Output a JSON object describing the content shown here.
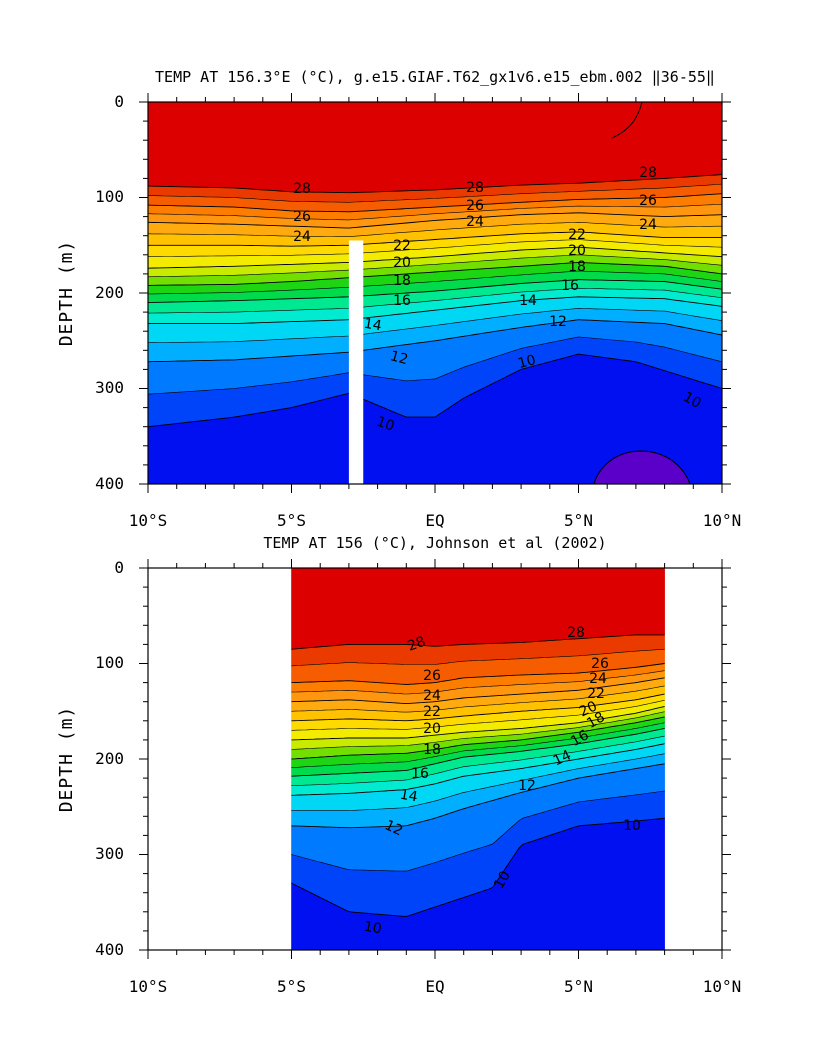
{
  "chart_data": [
    {
      "type": "heatmap",
      "title": "TEMP AT 156.3°E (°C), g.e15.GIAF.T62_gx1v6.e15_ebm.002 ‖36-55‖",
      "xlabel": "",
      "ylabel": "DEPTH (m)",
      "x_ticks": [
        "10°S",
        "5°S",
        "EQ",
        "5°N",
        "10°N"
      ],
      "y_ticks": [
        "0",
        "100",
        "200",
        "300",
        "400"
      ],
      "xlim": [
        -10,
        10
      ],
      "ylim": [
        400,
        0
      ],
      "y_reversed": true,
      "colorscale": "rainbow, blue (cold) to red (warm)",
      "contour_interval": 1,
      "data_coverage": {
        "lat_start": -10,
        "lat_end": 10
      },
      "missing_data_band": {
        "lat_start": -3.0,
        "lat_end": -2.5,
        "depth_top": 145
      },
      "isotherms": [
        {
          "temp": 28,
          "lat": [
            -10,
            -7,
            -5,
            -3,
            0,
            3,
            5,
            8,
            10
          ],
          "depth": [
            88,
            90,
            94,
            95,
            92,
            87,
            85,
            80,
            76
          ]
        },
        {
          "temp": 26,
          "lat": [
            -10,
            -7,
            -5,
            -3,
            0,
            3,
            5,
            8,
            10
          ],
          "depth": [
            108,
            110,
            114,
            115,
            110,
            105,
            102,
            100,
            96
          ]
        },
        {
          "temp": 24,
          "lat": [
            -10,
            -7,
            -5,
            -3,
            0,
            3,
            5,
            8,
            10
          ],
          "depth": [
            126,
            128,
            130,
            132,
            124,
            118,
            116,
            120,
            118
          ]
        },
        {
          "temp": 22,
          "lat": [
            -10,
            -7,
            -5,
            -3,
            0,
            3,
            5,
            8,
            10
          ],
          "depth": [
            150,
            150,
            151,
            150,
            144,
            138,
            136,
            142,
            142
          ]
        },
        {
          "temp": 20,
          "lat": [
            -10,
            -7,
            -5,
            -3,
            0,
            3,
            5,
            8,
            10
          ],
          "depth": [
            174,
            172,
            170,
            168,
            162,
            155,
            152,
            158,
            162
          ]
        },
        {
          "temp": 18,
          "lat": [
            -10,
            -7,
            -5,
            -3,
            0,
            3,
            5,
            8,
            10
          ],
          "depth": [
            192,
            191,
            188,
            184,
            178,
            172,
            168,
            172,
            180
          ]
        },
        {
          "temp": 16,
          "lat": [
            -10,
            -7,
            -5,
            -3,
            0,
            3,
            5,
            8,
            10
          ],
          "depth": [
            210,
            208,
            206,
            204,
            198,
            190,
            186,
            188,
            196
          ]
        },
        {
          "temp": 14,
          "lat": [
            -10,
            -7,
            -5,
            -3,
            0,
            3,
            5,
            8,
            10
          ],
          "depth": [
            232,
            232,
            230,
            228,
            218,
            208,
            204,
            206,
            214
          ]
        },
        {
          "temp": 12,
          "lat": [
            -10,
            -7,
            -5,
            -3,
            0,
            3,
            5,
            8,
            10
          ],
          "depth": [
            272,
            270,
            266,
            262,
            250,
            236,
            228,
            232,
            244
          ]
        },
        {
          "temp": 10,
          "lat": [
            -10,
            -7,
            -5,
            -3,
            -1,
            0,
            1,
            3,
            5,
            7,
            10
          ],
          "depth": [
            340,
            330,
            320,
            305,
            330,
            330,
            310,
            280,
            264,
            272,
            300
          ]
        }
      ],
      "contour_labels": [
        "28",
        "28",
        "28",
        "26",
        "26",
        "26",
        "24",
        "24",
        "24",
        "22",
        "22",
        "20",
        "20",
        "18",
        "18",
        "16",
        "16",
        "14",
        "14",
        "12",
        "12",
        "10",
        "10",
        "10"
      ]
    },
    {
      "type": "heatmap",
      "title": "TEMP AT 156 (°C), Johnson et al (2002)",
      "xlabel": "",
      "ylabel": "DEPTH (m)",
      "x_ticks": [
        "10°S",
        "5°S",
        "EQ",
        "5°N",
        "10°N"
      ],
      "y_ticks": [
        "0",
        "100",
        "200",
        "300",
        "400"
      ],
      "xlim": [
        -10,
        10
      ],
      "ylim": [
        400,
        0
      ],
      "y_reversed": true,
      "colorscale": "rainbow, blue (cold) to red (warm)",
      "contour_interval": 1,
      "data_coverage": {
        "lat_start": -5,
        "lat_end": 8
      },
      "isotherms": [
        {
          "temp": 28,
          "lat": [
            -5,
            -3,
            -1,
            0,
            1,
            3,
            5,
            7,
            8
          ],
          "depth": [
            85,
            80,
            80,
            82,
            80,
            78,
            74,
            70,
            70
          ]
        },
        {
          "temp": 26,
          "lat": [
            -5,
            -3,
            -1,
            0,
            1,
            3,
            5,
            7,
            8
          ],
          "depth": [
            120,
            118,
            122,
            120,
            115,
            112,
            110,
            104,
            100
          ]
        },
        {
          "temp": 24,
          "lat": [
            -5,
            -3,
            -1,
            0,
            1,
            3,
            5,
            7,
            8
          ],
          "depth": [
            140,
            138,
            142,
            140,
            136,
            132,
            128,
            120,
            115
          ]
        },
        {
          "temp": 22,
          "lat": [
            -5,
            -3,
            -1,
            0,
            1,
            3,
            5,
            7,
            8
          ],
          "depth": [
            160,
            158,
            160,
            158,
            155,
            150,
            146,
            138,
            132
          ]
        },
        {
          "temp": 20,
          "lat": [
            -5,
            -3,
            -1,
            0,
            1,
            3,
            5,
            7,
            8
          ],
          "depth": [
            180,
            178,
            178,
            175,
            172,
            168,
            162,
            152,
            145
          ]
        },
        {
          "temp": 18,
          "lat": [
            -5,
            -3,
            -1,
            0,
            1,
            3,
            5,
            7,
            8
          ],
          "depth": [
            200,
            196,
            194,
            190,
            185,
            180,
            172,
            162,
            156
          ]
        },
        {
          "temp": 16,
          "lat": [
            -5,
            -3,
            -1,
            0,
            1,
            3,
            5,
            7,
            8
          ],
          "depth": [
            218,
            215,
            212,
            205,
            198,
            192,
            184,
            174,
            168
          ]
        },
        {
          "temp": 14,
          "lat": [
            -5,
            -3,
            -1,
            0,
            1,
            3,
            5,
            7,
            8
          ],
          "depth": [
            238,
            236,
            232,
            226,
            218,
            210,
            200,
            190,
            184
          ]
        },
        {
          "temp": 12,
          "lat": [
            -5,
            -3,
            -1,
            0,
            1,
            3,
            5,
            7,
            8
          ],
          "depth": [
            270,
            272,
            270,
            262,
            252,
            235,
            220,
            210,
            205
          ]
        },
        {
          "temp": 10,
          "lat": [
            -5,
            -4,
            -3,
            -1,
            0,
            1,
            2,
            3,
            5,
            7,
            8
          ],
          "depth": [
            330,
            345,
            360,
            365,
            355,
            345,
            335,
            290,
            270,
            265,
            262
          ]
        }
      ],
      "contour_labels": [
        "28",
        "28",
        "26",
        "26",
        "24",
        "24",
        "22",
        "22",
        "20",
        "20",
        "18",
        "18",
        "16",
        "16",
        "14",
        "14",
        "12",
        "12",
        "10",
        "10",
        "10"
      ]
    }
  ]
}
